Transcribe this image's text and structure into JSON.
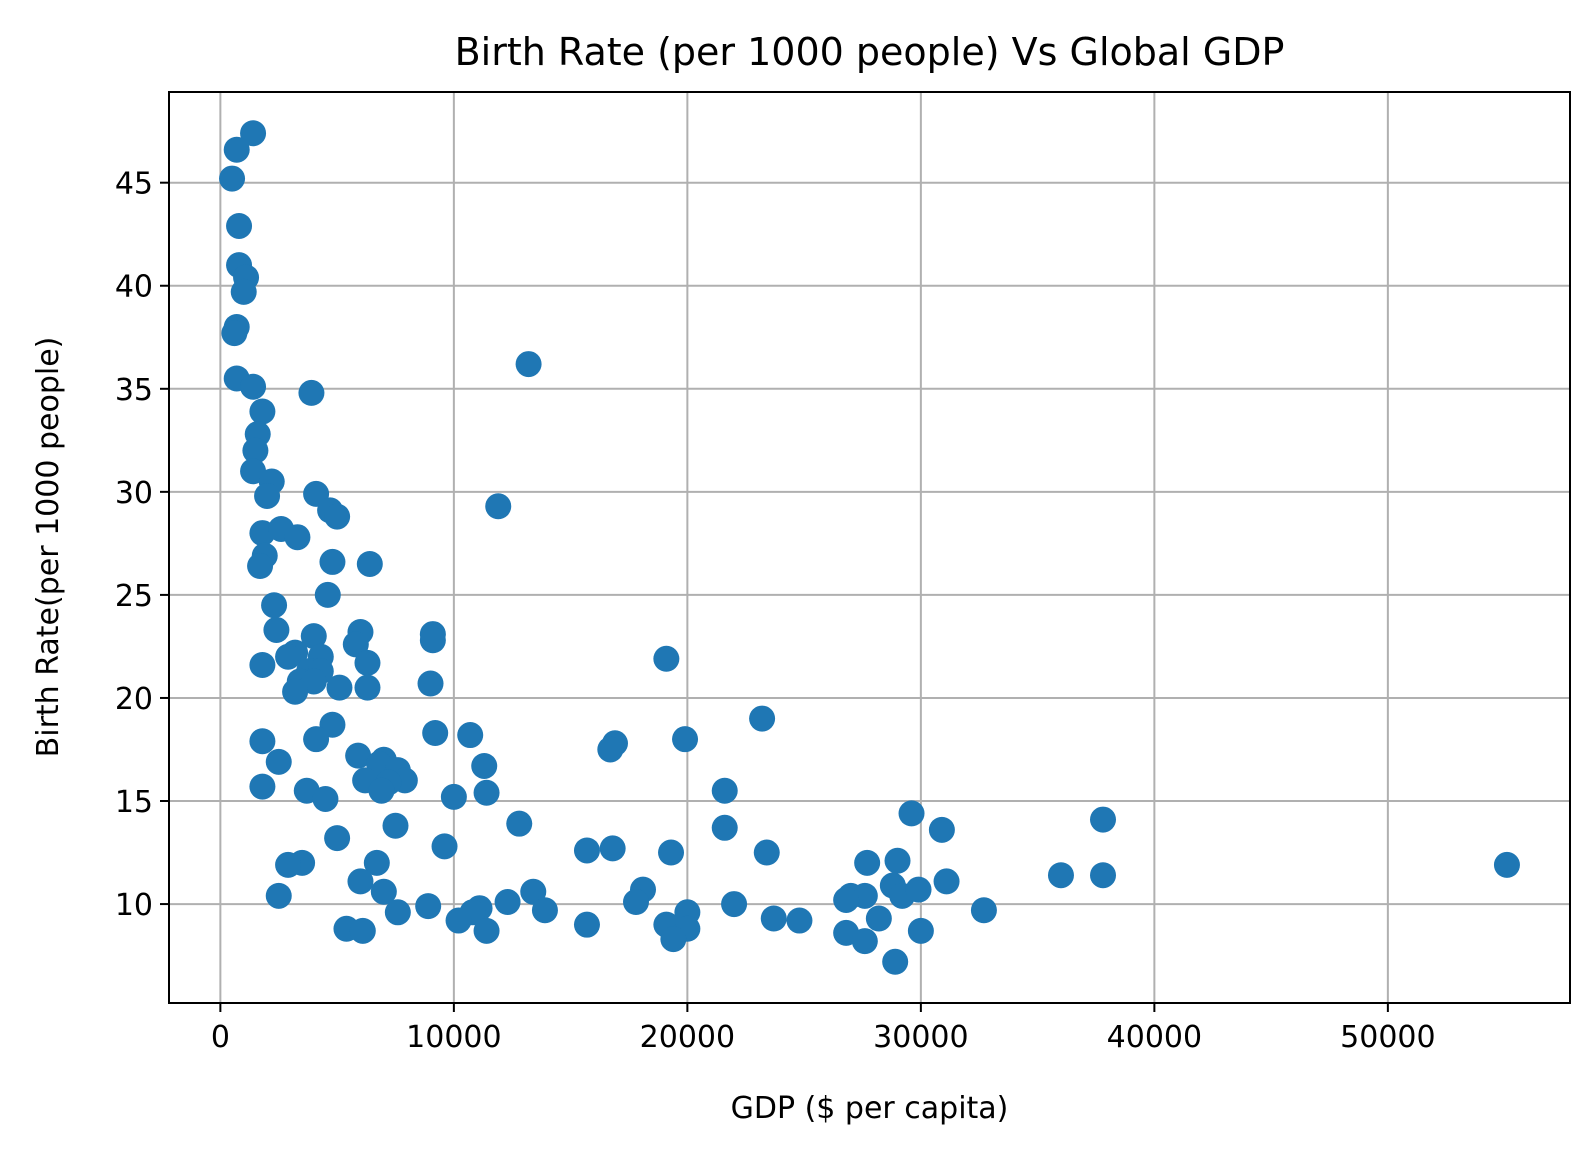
{
  "chart_data": {
    "type": "scatter",
    "title": "Birth Rate (per 1000 people) Vs Global GDP",
    "xlabel": "GDP ($ per capita)",
    "ylabel": "Birth Rate(per 1000 people)",
    "xlim": [
      -2200,
      57800
    ],
    "ylim": [
      5.2,
      49.4
    ],
    "xticks": [
      0,
      10000,
      20000,
      30000,
      40000,
      50000
    ],
    "xtick_labels": [
      "0",
      "10000",
      "20000",
      "30000",
      "40000",
      "50000"
    ],
    "yticks": [
      10,
      15,
      20,
      25,
      30,
      35,
      40,
      45
    ],
    "ytick_labels": [
      "10",
      "15",
      "20",
      "25",
      "30",
      "35",
      "40",
      "45"
    ],
    "grid": true,
    "marker_color": "#1f77b4",
    "points": [
      [
        1400,
        47.4
      ],
      [
        700,
        46.6
      ],
      [
        500,
        45.2
      ],
      [
        800,
        42.9
      ],
      [
        800,
        41.0
      ],
      [
        1100,
        40.4
      ],
      [
        1000,
        39.7
      ],
      [
        700,
        38.0
      ],
      [
        600,
        37.7
      ],
      [
        700,
        35.5
      ],
      [
        1400,
        35.1
      ],
      [
        3900,
        34.8
      ],
      [
        13200,
        36.2
      ],
      [
        1800,
        33.9
      ],
      [
        1600,
        32.8
      ],
      [
        1500,
        32.0
      ],
      [
        1400,
        31.0
      ],
      [
        2200,
        30.5
      ],
      [
        2000,
        29.8
      ],
      [
        4100,
        29.9
      ],
      [
        4700,
        29.1
      ],
      [
        5000,
        28.8
      ],
      [
        11900,
        29.3
      ],
      [
        1800,
        28.0
      ],
      [
        2600,
        28.2
      ],
      [
        3300,
        27.8
      ],
      [
        1900,
        26.9
      ],
      [
        1700,
        26.4
      ],
      [
        4800,
        26.6
      ],
      [
        6400,
        26.5
      ],
      [
        4600,
        25.0
      ],
      [
        2300,
        24.5
      ],
      [
        2400,
        23.3
      ],
      [
        4000,
        23.0
      ],
      [
        6000,
        23.2
      ],
      [
        9100,
        23.1
      ],
      [
        9100,
        22.8
      ],
      [
        5800,
        22.6
      ],
      [
        3200,
        22.2
      ],
      [
        2900,
        22.0
      ],
      [
        4300,
        22.0
      ],
      [
        6300,
        21.7
      ],
      [
        1800,
        21.6
      ],
      [
        19100,
        21.9
      ],
      [
        3800,
        21.3
      ],
      [
        4300,
        21.3
      ],
      [
        3400,
        20.8
      ],
      [
        4000,
        20.8
      ],
      [
        9000,
        20.7
      ],
      [
        5100,
        20.5
      ],
      [
        6300,
        20.5
      ],
      [
        3200,
        20.3
      ],
      [
        23200,
        19.0
      ],
      [
        4800,
        18.7
      ],
      [
        9200,
        18.3
      ],
      [
        10700,
        18.2
      ],
      [
        4100,
        18.0
      ],
      [
        19900,
        18.0
      ],
      [
        1800,
        17.9
      ],
      [
        16900,
        17.8
      ],
      [
        16700,
        17.5
      ],
      [
        5900,
        17.2
      ],
      [
        7000,
        17.0
      ],
      [
        2500,
        16.9
      ],
      [
        6800,
        16.8
      ],
      [
        11300,
        16.7
      ],
      [
        7600,
        16.5
      ],
      [
        7900,
        16.0
      ],
      [
        6200,
        16.0
      ],
      [
        7200,
        15.9
      ],
      [
        1800,
        15.7
      ],
      [
        3700,
        15.5
      ],
      [
        6900,
        15.5
      ],
      [
        11400,
        15.4
      ],
      [
        21600,
        15.5
      ],
      [
        10000,
        15.2
      ],
      [
        4500,
        15.1
      ],
      [
        29600,
        14.4
      ],
      [
        7500,
        13.8
      ],
      [
        12800,
        13.9
      ],
      [
        21600,
        13.7
      ],
      [
        30900,
        13.6
      ],
      [
        37800,
        14.1
      ],
      [
        5000,
        13.2
      ],
      [
        9600,
        12.8
      ],
      [
        15700,
        12.6
      ],
      [
        16800,
        12.7
      ],
      [
        19300,
        12.5
      ],
      [
        23400,
        12.5
      ],
      [
        6700,
        12.0
      ],
      [
        3500,
        12.0
      ],
      [
        2900,
        11.9
      ],
      [
        27700,
        12.0
      ],
      [
        29000,
        12.1
      ],
      [
        55100,
        11.9
      ],
      [
        6000,
        11.1
      ],
      [
        31100,
        11.1
      ],
      [
        36000,
        11.4
      ],
      [
        37800,
        11.4
      ],
      [
        18100,
        10.7
      ],
      [
        28800,
        10.9
      ],
      [
        7000,
        10.6
      ],
      [
        13400,
        10.6
      ],
      [
        27000,
        10.4
      ],
      [
        27600,
        10.4
      ],
      [
        29200,
        10.4
      ],
      [
        29900,
        10.7
      ],
      [
        2500,
        10.4
      ],
      [
        17800,
        10.1
      ],
      [
        12300,
        10.1
      ],
      [
        22000,
        10.0
      ],
      [
        26800,
        10.2
      ],
      [
        8900,
        9.9
      ],
      [
        11100,
        9.8
      ],
      [
        7600,
        9.6
      ],
      [
        10800,
        9.6
      ],
      [
        13900,
        9.7
      ],
      [
        20000,
        9.6
      ],
      [
        32700,
        9.7
      ],
      [
        10200,
        9.2
      ],
      [
        23700,
        9.3
      ],
      [
        24800,
        9.2
      ],
      [
        28200,
        9.3
      ],
      [
        15700,
        9.0
      ],
      [
        19100,
        9.0
      ],
      [
        5400,
        8.8
      ],
      [
        6100,
        8.7
      ],
      [
        11400,
        8.7
      ],
      [
        20000,
        8.8
      ],
      [
        26800,
        8.6
      ],
      [
        30000,
        8.7
      ],
      [
        19400,
        8.3
      ],
      [
        27600,
        8.2
      ],
      [
        28900,
        7.2
      ]
    ]
  }
}
